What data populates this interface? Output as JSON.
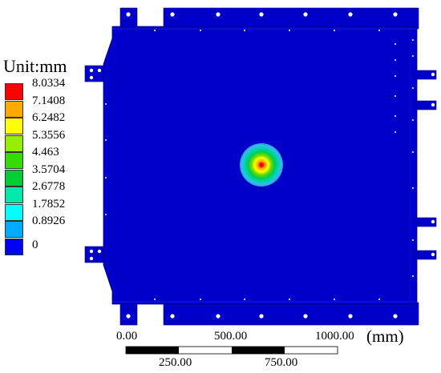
{
  "legend": {
    "title": "Unit:mm",
    "levels": [
      {
        "label": "8.0334",
        "color": "#ff0000"
      },
      {
        "label": "7.1408",
        "color": "#ffaa00"
      },
      {
        "label": "6.2482",
        "color": "#ffff00"
      },
      {
        "label": "5.3556",
        "color": "#99ee00"
      },
      {
        "label": "4.463",
        "color": "#33dd00"
      },
      {
        "label": "3.5704",
        "color": "#00cc33"
      },
      {
        "label": "2.6778",
        "color": "#00e8aa"
      },
      {
        "label": "1.7852",
        "color": "#00ffff"
      },
      {
        "label": "0.8926",
        "color": "#00aaff"
      },
      {
        "label": "0",
        "color": "#0000ff"
      }
    ]
  },
  "scale_bar": {
    "top_labels": [
      "0.00",
      "500.00",
      "1000.00"
    ],
    "bottom_labels": [
      "250.00",
      "750.00"
    ],
    "unit": "(mm)"
  },
  "colors": {
    "plate": "#0000c8",
    "plate_edge": "#000080"
  }
}
